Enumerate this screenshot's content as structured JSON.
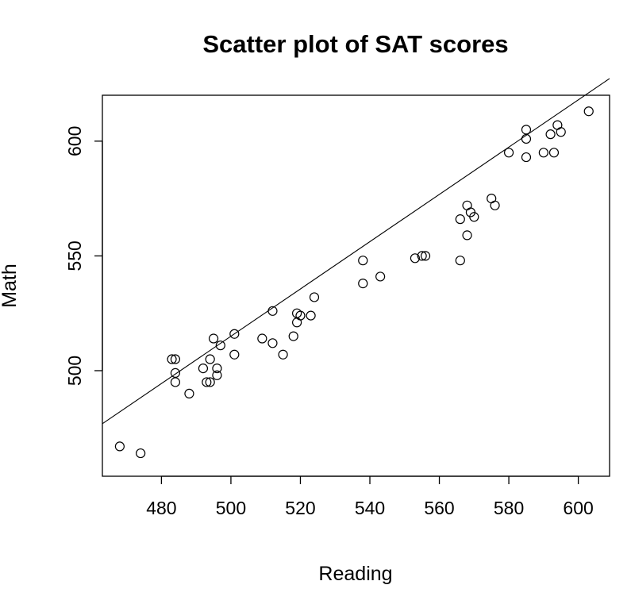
{
  "chart_data": {
    "type": "scatter",
    "title": "Scatter plot of SAT scores",
    "xlabel": "Reading",
    "ylabel": "Math",
    "xlim": [
      463,
      609
    ],
    "ylim": [
      454,
      620
    ],
    "x_ticks": [
      480,
      500,
      520,
      540,
      560,
      580,
      600
    ],
    "y_ticks": [
      500,
      550,
      600
    ],
    "grid": false,
    "legend": "none",
    "regression_line": {
      "slope": 1.03,
      "intercept": 0.0
    },
    "points": [
      {
        "x": 468,
        "y": 467
      },
      {
        "x": 474,
        "y": 464
      },
      {
        "x": 483,
        "y": 505
      },
      {
        "x": 484,
        "y": 505
      },
      {
        "x": 484,
        "y": 499
      },
      {
        "x": 484,
        "y": 495
      },
      {
        "x": 488,
        "y": 490
      },
      {
        "x": 492,
        "y": 501
      },
      {
        "x": 493,
        "y": 495
      },
      {
        "x": 494,
        "y": 495
      },
      {
        "x": 494,
        "y": 505
      },
      {
        "x": 495,
        "y": 514
      },
      {
        "x": 496,
        "y": 498
      },
      {
        "x": 496,
        "y": 501
      },
      {
        "x": 497,
        "y": 511
      },
      {
        "x": 501,
        "y": 516
      },
      {
        "x": 501,
        "y": 507
      },
      {
        "x": 509,
        "y": 514
      },
      {
        "x": 512,
        "y": 526
      },
      {
        "x": 512,
        "y": 512
      },
      {
        "x": 515,
        "y": 507
      },
      {
        "x": 518,
        "y": 515
      },
      {
        "x": 519,
        "y": 521
      },
      {
        "x": 519,
        "y": 525
      },
      {
        "x": 520,
        "y": 524
      },
      {
        "x": 523,
        "y": 524
      },
      {
        "x": 524,
        "y": 532
      },
      {
        "x": 538,
        "y": 548
      },
      {
        "x": 538,
        "y": 538
      },
      {
        "x": 543,
        "y": 541
      },
      {
        "x": 553,
        "y": 549
      },
      {
        "x": 555,
        "y": 550
      },
      {
        "x": 556,
        "y": 550
      },
      {
        "x": 566,
        "y": 548
      },
      {
        "x": 566,
        "y": 566
      },
      {
        "x": 568,
        "y": 559
      },
      {
        "x": 568,
        "y": 572
      },
      {
        "x": 569,
        "y": 569
      },
      {
        "x": 570,
        "y": 567
      },
      {
        "x": 575,
        "y": 575
      },
      {
        "x": 576,
        "y": 572
      },
      {
        "x": 580,
        "y": 595
      },
      {
        "x": 585,
        "y": 593
      },
      {
        "x": 585,
        "y": 601
      },
      {
        "x": 585,
        "y": 605
      },
      {
        "x": 590,
        "y": 595
      },
      {
        "x": 592,
        "y": 603
      },
      {
        "x": 593,
        "y": 595
      },
      {
        "x": 594,
        "y": 607
      },
      {
        "x": 595,
        "y": 604
      },
      {
        "x": 603,
        "y": 613
      }
    ]
  }
}
